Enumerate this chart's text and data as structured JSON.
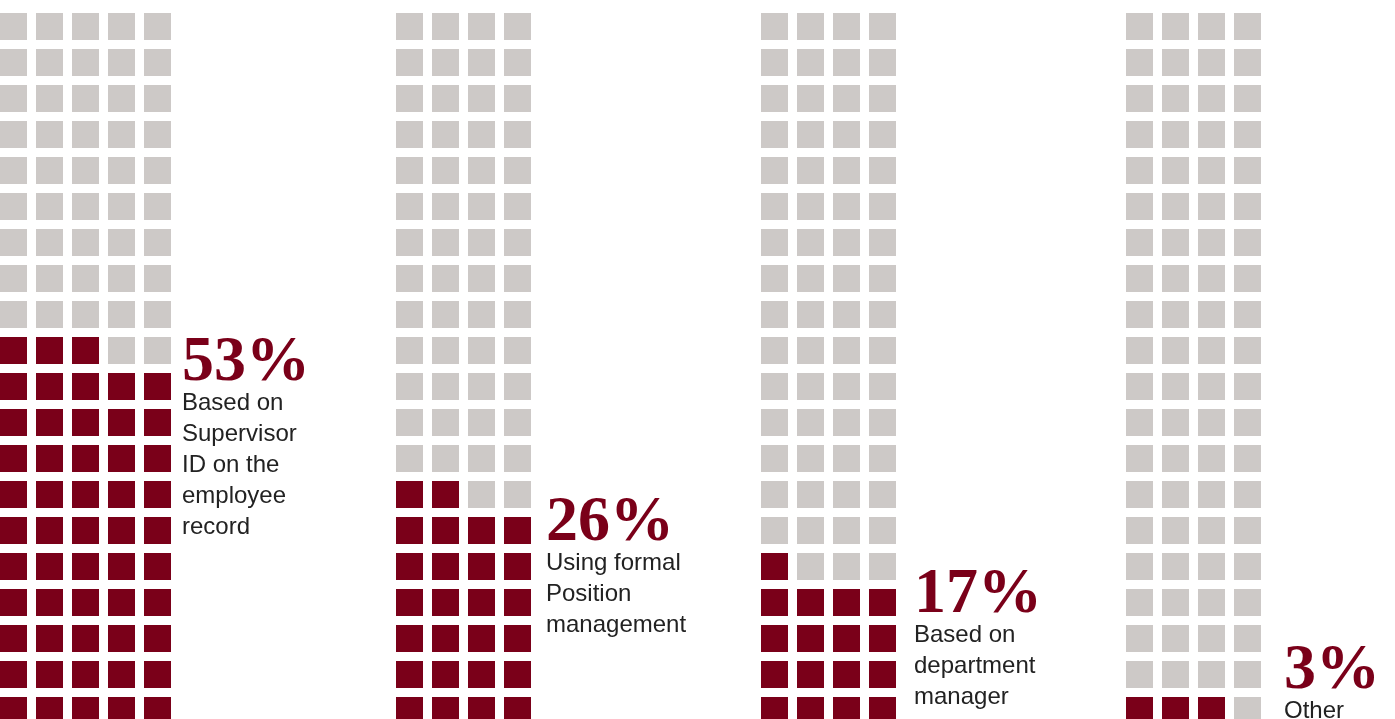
{
  "chart_data": {
    "type": "other",
    "categories": [
      "Based on Supervisor ID on the employee record",
      "Using formal Position management",
      "Based on department manager",
      "Other"
    ],
    "values": [
      53,
      26,
      17,
      3
    ],
    "value_labels": [
      "53%",
      "26%",
      "17%",
      "3%"
    ],
    "color": "#7a0019"
  }
}
